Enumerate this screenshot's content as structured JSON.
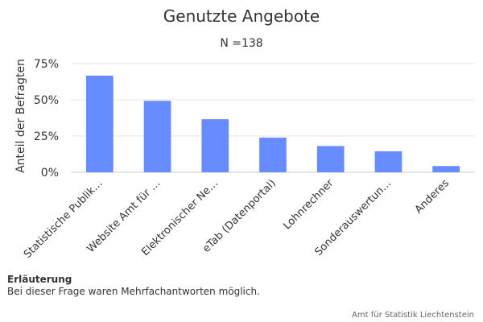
{
  "chart_data": {
    "type": "bar",
    "title": "Genutzte Angebote",
    "subtitle": "N =138",
    "ylabel": "Anteil der Befragten",
    "xlabel": "",
    "categories": [
      "Statistische Publik…",
      "Website Amt für …",
      "Elektronischer Ne…",
      "eTab (Datenportal)",
      "Lohnrechner",
      "Sonderauswertun…",
      "Anderes"
    ],
    "values": [
      66.7,
      49.3,
      36.6,
      23.9,
      18.1,
      14.5,
      4.3
    ],
    "unit": "%",
    "ylim": [
      0,
      75
    ],
    "yticks": [
      0,
      25,
      50,
      75
    ],
    "ytick_labels": [
      "0%",
      "25%",
      "50%",
      "75%"
    ],
    "grid": true,
    "legend": "none",
    "bar_color": "#668cff"
  },
  "notes": {
    "title": "Erläuterung",
    "text": "Bei dieser Frage waren Mehrfachantworten möglich."
  },
  "credits": "Amt für Statistik Liechtenstein"
}
